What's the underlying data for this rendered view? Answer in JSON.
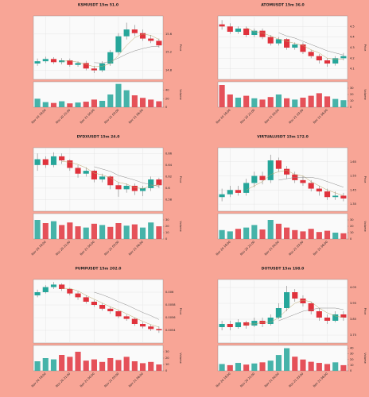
{
  "background": "#f8a596",
  "chart_data": [
    {
      "type": "candlestick",
      "title": "KSMUSDT 15m 51.0",
      "ylabel": "Price",
      "vlabel": "Volume",
      "up_color": "#26a69a",
      "down_color": "#e0323c",
      "grid": true,
      "open": [
        14.95,
        15.0,
        15.05,
        14.98,
        15.02,
        14.92,
        14.96,
        14.84,
        14.8,
        14.95,
        15.2,
        15.55,
        15.7,
        15.62,
        15.5,
        15.45
      ],
      "high": [
        15.06,
        15.1,
        15.09,
        15.07,
        15.06,
        15.0,
        15.01,
        14.9,
        15.0,
        15.25,
        15.62,
        15.85,
        15.8,
        15.7,
        15.58,
        15.5
      ],
      "low": [
        14.9,
        14.96,
        14.94,
        14.93,
        14.88,
        14.88,
        14.8,
        14.74,
        14.76,
        14.9,
        15.15,
        15.48,
        15.55,
        15.45,
        15.4,
        15.3
      ],
      "close": [
        15.0,
        15.05,
        14.98,
        15.02,
        14.92,
        14.96,
        14.84,
        14.8,
        14.95,
        15.2,
        15.55,
        15.7,
        15.62,
        15.5,
        15.45,
        15.35
      ],
      "volume": [
        20,
        12,
        10,
        14,
        9,
        11,
        13,
        18,
        15,
        30,
        55,
        40,
        28,
        22,
        18,
        14
      ],
      "series": [
        {
          "color": "#b8a66a",
          "values": [
            null,
            null,
            null,
            15.0,
            15.01,
            14.98,
            14.93,
            14.88,
            14.89,
            14.95,
            15.13,
            15.35,
            15.52,
            15.6,
            15.57,
            15.48
          ]
        },
        {
          "color": "#8a8a8a",
          "values": [
            null,
            null,
            null,
            null,
            null,
            null,
            null,
            14.97,
            14.96,
            15.0,
            15.07,
            15.16,
            15.23,
            15.28,
            15.32,
            15.33
          ]
        }
      ],
      "ylim": [
        14.6,
        16.0
      ],
      "yticks": [
        14.8,
        15.2,
        15.6
      ],
      "vlim": [
        0,
        60
      ],
      "vticks": [
        0,
        20,
        40
      ],
      "xticks": [
        {
          "value": 1,
          "label": "Nov 20 18:00"
        },
        {
          "value": 4,
          "label": "Nov 20 21:00"
        },
        {
          "value": 7,
          "label": "Nov 21 00:00"
        },
        {
          "value": 10,
          "label": "Nov 21 03:00"
        },
        {
          "value": 13,
          "label": "Nov 21 06:00"
        }
      ]
    },
    {
      "type": "candlestick",
      "title": "ATOMUSDT 15m 36.0",
      "ylabel": "Price",
      "vlabel": "Volume",
      "up_color": "#26a69a",
      "down_color": "#e0323c",
      "grid": true,
      "open": [
        4.52,
        4.5,
        4.45,
        4.48,
        4.42,
        4.46,
        4.4,
        4.34,
        4.38,
        4.3,
        4.33,
        4.26,
        4.22,
        4.18,
        4.15,
        4.2
      ],
      "high": [
        4.56,
        4.53,
        4.5,
        4.5,
        4.48,
        4.48,
        4.42,
        4.4,
        4.39,
        4.35,
        4.35,
        4.28,
        4.24,
        4.2,
        4.22,
        4.25
      ],
      "low": [
        4.47,
        4.43,
        4.43,
        4.4,
        4.4,
        4.38,
        4.32,
        4.32,
        4.28,
        4.28,
        4.24,
        4.2,
        4.15,
        4.12,
        4.13,
        4.18
      ],
      "close": [
        4.5,
        4.45,
        4.48,
        4.42,
        4.46,
        4.4,
        4.34,
        4.38,
        4.3,
        4.33,
        4.26,
        4.22,
        4.18,
        4.15,
        4.2,
        4.22
      ],
      "volume": [
        35,
        20,
        15,
        18,
        14,
        12,
        16,
        20,
        14,
        12,
        15,
        18,
        22,
        17,
        13,
        11
      ],
      "series": [
        {
          "color": "#b8a66a",
          "values": [
            null,
            null,
            null,
            4.49,
            4.45,
            4.44,
            4.41,
            4.38,
            4.36,
            4.34,
            4.32,
            4.28,
            4.25,
            4.2,
            4.19,
            4.19
          ]
        },
        {
          "color": "#8a8a8a",
          "values": [
            null,
            null,
            null,
            null,
            null,
            null,
            null,
            4.44,
            4.41,
            4.39,
            4.36,
            4.33,
            4.3,
            4.27,
            4.25,
            4.23
          ]
        }
      ],
      "ylim": [
        4.0,
        4.6
      ],
      "yticks": [
        4.1,
        4.2,
        4.3,
        4.4,
        4.5
      ],
      "vlim": [
        0,
        40
      ],
      "vticks": [
        0,
        10,
        20,
        30
      ],
      "xticks": [
        {
          "value": 1,
          "label": "Nov 20 18:00"
        },
        {
          "value": 4,
          "label": "Nov 20 21:00"
        },
        {
          "value": 7,
          "label": "Nov 21 00:00"
        },
        {
          "value": 10,
          "label": "Nov 21 03:00"
        },
        {
          "value": 13,
          "label": "Nov 21 06:00"
        }
      ]
    },
    {
      "type": "candlestick",
      "title": "DYDXUSDT 15m 24.0",
      "ylabel": "Price",
      "vlabel": "Volume",
      "up_color": "#26a69a",
      "down_color": "#e0323c",
      "grid": true,
      "open": [
        0.64,
        0.65,
        0.64,
        0.655,
        0.648,
        0.635,
        0.625,
        0.63,
        0.615,
        0.62,
        0.605,
        0.598,
        0.604,
        0.595,
        0.6,
        0.615
      ],
      "high": [
        0.66,
        0.655,
        0.662,
        0.66,
        0.65,
        0.64,
        0.636,
        0.632,
        0.625,
        0.622,
        0.61,
        0.608,
        0.608,
        0.604,
        0.62,
        0.618
      ],
      "low": [
        0.63,
        0.635,
        0.636,
        0.642,
        0.63,
        0.618,
        0.62,
        0.61,
        0.61,
        0.598,
        0.585,
        0.592,
        0.588,
        0.586,
        0.595,
        0.6
      ],
      "close": [
        0.65,
        0.64,
        0.655,
        0.648,
        0.635,
        0.625,
        0.63,
        0.615,
        0.62,
        0.605,
        0.598,
        0.604,
        0.595,
        0.6,
        0.615,
        0.605
      ],
      "volume": [
        30,
        25,
        28,
        22,
        26,
        20,
        18,
        24,
        22,
        19,
        25,
        21,
        23,
        18,
        26,
        20
      ],
      "series": [
        {
          "color": "#b8a66a",
          "values": [
            null,
            null,
            null,
            0.646,
            0.645,
            0.641,
            0.635,
            0.626,
            0.623,
            0.618,
            0.61,
            0.607,
            0.601,
            0.599,
            0.604,
            0.606
          ]
        },
        {
          "color": "#8a8a8a",
          "values": [
            null,
            null,
            null,
            null,
            null,
            null,
            null,
            0.637,
            0.633,
            0.629,
            0.622,
            0.618,
            0.614,
            0.609,
            0.606,
            0.603
          ]
        }
      ],
      "ylim": [
        0.56,
        0.67
      ],
      "yticks": [
        0.58,
        0.6,
        0.62,
        0.64,
        0.66
      ],
      "vlim": [
        0,
        40
      ],
      "vticks": [
        0,
        10,
        20,
        30
      ],
      "xticks": [
        {
          "value": 1,
          "label": "Nov 20 18:00"
        },
        {
          "value": 4,
          "label": "Nov 20 21:00"
        },
        {
          "value": 7,
          "label": "Nov 21 00:00"
        },
        {
          "value": 10,
          "label": "Nov 21 03:00"
        },
        {
          "value": 13,
          "label": "Nov 21 06:00"
        }
      ]
    },
    {
      "type": "candlestick",
      "title": "VIRTUALUSDT 15m 172.0",
      "ylabel": "Price",
      "vlabel": "Volume",
      "up_color": "#26a69a",
      "down_color": "#e0323c",
      "grid": true,
      "open": [
        1.4,
        1.42,
        1.45,
        1.43,
        1.5,
        1.55,
        1.52,
        1.66,
        1.6,
        1.56,
        1.52,
        1.5,
        1.46,
        1.44,
        1.4,
        1.41
      ],
      "high": [
        1.46,
        1.48,
        1.48,
        1.53,
        1.58,
        1.58,
        1.7,
        1.68,
        1.62,
        1.58,
        1.55,
        1.52,
        1.48,
        1.46,
        1.44,
        1.43
      ],
      "low": [
        1.37,
        1.4,
        1.41,
        1.41,
        1.47,
        1.49,
        1.5,
        1.58,
        1.53,
        1.5,
        1.48,
        1.44,
        1.41,
        1.38,
        1.38,
        1.37
      ],
      "close": [
        1.42,
        1.45,
        1.43,
        1.5,
        1.55,
        1.52,
        1.66,
        1.6,
        1.56,
        1.52,
        1.5,
        1.46,
        1.44,
        1.4,
        1.41,
        1.39
      ],
      "volume": [
        14,
        12,
        16,
        18,
        22,
        15,
        30,
        24,
        18,
        14,
        12,
        16,
        11,
        13,
        10,
        9
      ],
      "series": [
        {
          "color": "#b8a66a",
          "values": [
            null,
            null,
            null,
            1.45,
            1.48,
            1.51,
            1.56,
            1.58,
            1.59,
            1.56,
            1.55,
            1.51,
            1.48,
            1.45,
            1.43,
            1.41
          ]
        },
        {
          "color": "#8a8a8a",
          "values": [
            null,
            null,
            null,
            null,
            null,
            null,
            null,
            1.52,
            1.53,
            1.54,
            1.54,
            1.54,
            1.53,
            1.51,
            1.49,
            1.47
          ]
        }
      ],
      "ylim": [
        1.3,
        1.75
      ],
      "yticks": [
        1.35,
        1.45,
        1.55,
        1.65
      ],
      "vlim": [
        0,
        40
      ],
      "vticks": [
        0,
        10,
        20,
        30
      ],
      "xticks": [
        {
          "value": 1,
          "label": "Nov 20 18:00"
        },
        {
          "value": 4,
          "label": "Nov 20 21:00"
        },
        {
          "value": 7,
          "label": "Nov 21 00:00"
        },
        {
          "value": 10,
          "label": "Nov 21 03:00"
        },
        {
          "value": 13,
          "label": "Nov 21 06:00"
        }
      ]
    },
    {
      "type": "candlestick",
      "title": "PUMPUSDT 15m 202.0",
      "ylabel": "Price",
      "vlabel": "Volume",
      "up_color": "#26a69a",
      "down_color": "#e0323c",
      "grid": true,
      "open": [
        0.00595,
        0.006,
        0.00608,
        0.00612,
        0.00605,
        0.00598,
        0.00592,
        0.00585,
        0.0058,
        0.00574,
        0.0057,
        0.00562,
        0.00558,
        0.0055,
        0.00546,
        0.00542
      ],
      "high": [
        0.00604,
        0.00611,
        0.00616,
        0.00614,
        0.00607,
        0.00601,
        0.00595,
        0.00588,
        0.00583,
        0.00577,
        0.00572,
        0.00565,
        0.0056,
        0.00553,
        0.00549,
        0.00546
      ],
      "low": [
        0.00592,
        0.00598,
        0.00605,
        0.00602,
        0.00595,
        0.00588,
        0.00582,
        0.00577,
        0.00571,
        0.00566,
        0.00559,
        0.00555,
        0.00547,
        0.00543,
        0.00539,
        0.00536
      ],
      "close": [
        0.006,
        0.00608,
        0.00612,
        0.00605,
        0.00598,
        0.00592,
        0.00585,
        0.0058,
        0.00574,
        0.0057,
        0.00562,
        0.00558,
        0.0055,
        0.00546,
        0.00542,
        0.0054
      ],
      "volume": [
        15,
        20,
        18,
        25,
        22,
        30,
        16,
        18,
        14,
        20,
        17,
        22,
        15,
        12,
        14,
        10
      ],
      "series": [
        {
          "color": "#b8a66a",
          "values": [
            null,
            null,
            null,
            0.00606,
            0.00606,
            0.00602,
            0.00595,
            0.00589,
            0.00583,
            0.00577,
            0.00572,
            0.00566,
            0.0056,
            0.00554,
            0.00549,
            0.00545
          ]
        },
        {
          "color": "#8a8a8a",
          "values": [
            null,
            null,
            null,
            null,
            null,
            null,
            null,
            0.006,
            0.00596,
            0.00591,
            0.00585,
            0.0058,
            0.00574,
            0.00568,
            0.00563,
            0.00557
          ]
        }
      ],
      "ylim": [
        0.0052,
        0.0062
      ],
      "yticks": [
        0.0054,
        0.0056,
        0.0058,
        0.006
      ],
      "vlim": [
        0,
        40
      ],
      "vticks": [
        0,
        10,
        20,
        30
      ],
      "xticks": [
        {
          "value": 1,
          "label": "Nov 20 18:00"
        },
        {
          "value": 4,
          "label": "Nov 20 21:00"
        },
        {
          "value": 7,
          "label": "Nov 21 00:00"
        },
        {
          "value": 10,
          "label": "Nov 21 03:00"
        },
        {
          "value": 13,
          "label": "Nov 21 06:00"
        }
      ]
    },
    {
      "type": "candlestick",
      "title": "DOTUSDT 15m 198.0",
      "ylabel": "Price",
      "vlabel": "Volume",
      "up_color": "#26a69a",
      "down_color": "#e0323c",
      "grid": true,
      "open": [
        3.8,
        3.82,
        3.8,
        3.83,
        3.81,
        3.84,
        3.82,
        3.86,
        3.92,
        4.02,
        3.98,
        3.95,
        3.9,
        3.86,
        3.84,
        3.88
      ],
      "high": [
        3.84,
        3.84,
        3.85,
        3.84,
        3.86,
        3.86,
        3.88,
        3.95,
        4.06,
        4.04,
        4.0,
        3.96,
        3.92,
        3.88,
        3.9,
        3.9
      ],
      "low": [
        3.78,
        3.78,
        3.79,
        3.79,
        3.8,
        3.8,
        3.81,
        3.85,
        3.9,
        3.96,
        3.93,
        3.88,
        3.84,
        3.82,
        3.83,
        3.84
      ],
      "close": [
        3.82,
        3.8,
        3.83,
        3.81,
        3.84,
        3.82,
        3.86,
        3.92,
        4.02,
        3.98,
        3.95,
        3.9,
        3.86,
        3.84,
        3.88,
        3.86
      ],
      "volume": [
        12,
        10,
        14,
        11,
        13,
        15,
        18,
        28,
        40,
        25,
        20,
        16,
        14,
        12,
        15,
        10
      ],
      "series": [
        {
          "color": "#b8a66a",
          "values": [
            null,
            null,
            null,
            3.82,
            3.82,
            3.83,
            3.83,
            3.86,
            3.91,
            3.95,
            3.97,
            3.96,
            3.92,
            3.89,
            3.87,
            3.86
          ]
        },
        {
          "color": "#8a8a8a",
          "values": [
            null,
            null,
            null,
            null,
            null,
            null,
            null,
            3.84,
            3.86,
            3.88,
            3.9,
            3.91,
            3.92,
            3.92,
            3.92,
            3.91
          ]
        }
      ],
      "ylim": [
        3.7,
        4.1
      ],
      "yticks": [
        3.75,
        3.85,
        3.95,
        4.05
      ],
      "vlim": [
        0,
        45
      ],
      "vticks": [
        0,
        10,
        20,
        30,
        40
      ],
      "xticks": [
        {
          "value": 1,
          "label": "Nov 20 18:00"
        },
        {
          "value": 4,
          "label": "Nov 20 21:00"
        },
        {
          "value": 7,
          "label": "Nov 21 00:00"
        },
        {
          "value": 10,
          "label": "Nov 21 03:00"
        },
        {
          "value": 13,
          "label": "Nov 21 06:00"
        }
      ]
    }
  ]
}
